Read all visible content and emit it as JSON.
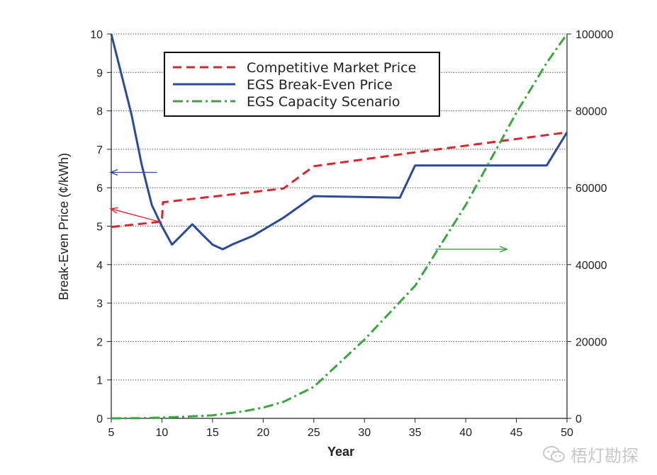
{
  "chart_data": {
    "type": "line",
    "xlabel": "Year",
    "ylabel_left": "Break-Even Price (¢/kWh)",
    "xlim": [
      5,
      50
    ],
    "ylim_left": [
      0,
      10
    ],
    "ylim_right": [
      0,
      100000
    ],
    "x_ticks": [
      "5",
      "10",
      "15",
      "20",
      "25",
      "30",
      "35",
      "40",
      "45",
      "50"
    ],
    "y_ticks_left": [
      "0",
      "1",
      "2",
      "3",
      "4",
      "5",
      "6",
      "7",
      "8",
      "9",
      "10"
    ],
    "y_ticks_right": [
      "0",
      "20000",
      "40000",
      "60000",
      "80000",
      "100000"
    ],
    "grid": "horizontal-dotted",
    "legend_position": "top-left",
    "series": [
      {
        "name": "Competitive Market Price",
        "axis": "left",
        "style": "dashed",
        "color": "#d7262e",
        "points": [
          [
            5,
            4.98
          ],
          [
            10,
            5.12
          ],
          [
            10.1,
            5.62
          ],
          [
            22,
            5.98
          ],
          [
            25,
            6.56
          ],
          [
            35,
            6.92
          ],
          [
            50,
            7.44
          ]
        ]
      },
      {
        "name": "EGS Break-Even Price",
        "axis": "left",
        "style": "solid",
        "color": "#2b4a9a",
        "points": [
          [
            5,
            10.0
          ],
          [
            7,
            7.9
          ],
          [
            8,
            6.6
          ],
          [
            9,
            5.55
          ],
          [
            10,
            5.0
          ],
          [
            11,
            4.52
          ],
          [
            13,
            5.05
          ],
          [
            14,
            4.78
          ],
          [
            15,
            4.52
          ],
          [
            16,
            4.4
          ],
          [
            17,
            4.53
          ],
          [
            19,
            4.75
          ],
          [
            22,
            5.22
          ],
          [
            25,
            5.78
          ],
          [
            33.5,
            5.74
          ],
          [
            35,
            6.58
          ],
          [
            48,
            6.58
          ],
          [
            50,
            7.44
          ]
        ]
      },
      {
        "name": "EGS Capacity Scenario",
        "axis": "right",
        "style": "dash-dot",
        "color": "#3aa63f",
        "points": [
          [
            5,
            0
          ],
          [
            8,
            50
          ],
          [
            10,
            200
          ],
          [
            12,
            400
          ],
          [
            15,
            800
          ],
          [
            18,
            1800
          ],
          [
            20,
            2800
          ],
          [
            22,
            4300
          ],
          [
            25,
            8200
          ],
          [
            30,
            20500
          ],
          [
            35,
            34500
          ],
          [
            40,
            55500
          ],
          [
            45,
            79500
          ],
          [
            48,
            92500
          ],
          [
            50,
            100000
          ]
        ]
      }
    ],
    "annotations": [
      {
        "type": "arrow",
        "color": "#2b4a9a",
        "from": [
          9.5,
          6.4
        ],
        "to": [
          5,
          6.4
        ],
        "points_to": "left axis"
      },
      {
        "type": "arrow",
        "color": "#d7262e",
        "from": [
          10,
          5.1
        ],
        "to": [
          5,
          5.45
        ],
        "points_to": "left axis"
      },
      {
        "type": "arrow",
        "color": "#3aa63f",
        "from": [
          37,
          4.4
        ],
        "to": [
          44,
          4.4
        ],
        "points_to": "right axis"
      }
    ]
  },
  "watermark": {
    "text": "梧灯勘探",
    "icon": "wechat-icon"
  }
}
